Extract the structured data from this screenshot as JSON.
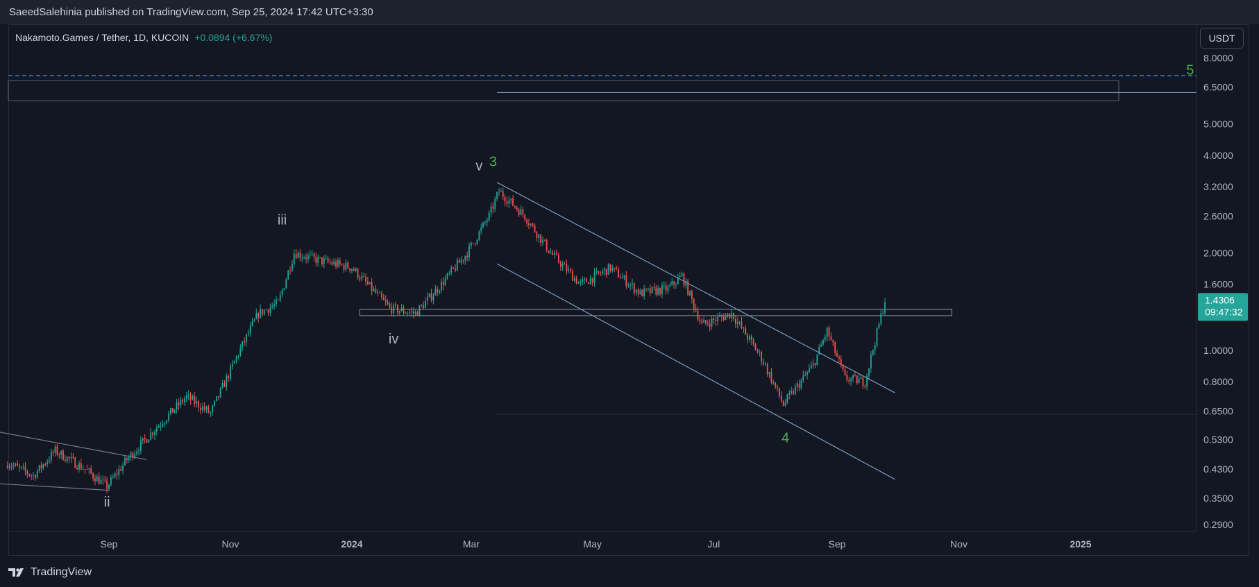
{
  "publish_bar": {
    "text": "SaeedSalehinia published on TradingView.com, Sep 25, 2024 17:42 UTC+3:30"
  },
  "legend": {
    "symbol": "Nakamoto.Games / Tether, 1D, KUCOIN",
    "change": "+0.0894 (+6.67%)"
  },
  "currency_button": "USDT",
  "last_price": {
    "value": "1.4306",
    "countdown": "09:47:32",
    "color": "#26a69a"
  },
  "footer": {
    "brand": "TradingView",
    "logo_icon": "tradingview-logo-icon"
  },
  "colors": {
    "background": "#131722",
    "up": "#26a69a",
    "down": "#ef5350",
    "trendline": "#7a9cc6",
    "wave_green": "#4caf50",
    "wave_grey": "#b2b5be",
    "target_dashed": "#2f7fd1"
  },
  "chart_data": {
    "type": "candlestick",
    "scale": "log",
    "x_axis_type": "time",
    "x_ticks": [
      "Sep",
      "Nov",
      "2024",
      "Mar",
      "May",
      "Jul",
      "Sep",
      "Nov",
      "2025"
    ],
    "y_ticks": [
      "8.0000",
      "6.5000",
      "5.0000",
      "4.0000",
      "3.2000",
      "2.6000",
      "2.0000",
      "1.6000",
      "1.0000",
      "0.8000",
      "0.6500",
      "0.5300",
      "0.4300",
      "0.3500",
      "0.2900"
    ],
    "ylim": [
      0.27,
      9.5
    ],
    "approx_close_path": [
      {
        "date": "2023-07-12",
        "close": 0.45
      },
      {
        "date": "2023-07-25",
        "close": 0.41
      },
      {
        "date": "2023-08-05",
        "close": 0.49
      },
      {
        "date": "2023-08-20",
        "close": 0.43
      },
      {
        "date": "2023-08-31",
        "close": 0.38
      },
      {
        "date": "2023-09-10",
        "close": 0.46
      },
      {
        "date": "2023-09-25",
        "close": 0.58
      },
      {
        "date": "2023-10-10",
        "close": 0.72
      },
      {
        "date": "2023-10-22",
        "close": 0.64
      },
      {
        "date": "2023-11-05",
        "close": 0.98
      },
      {
        "date": "2023-11-15",
        "close": 1.3
      },
      {
        "date": "2023-11-25",
        "close": 1.4
      },
      {
        "date": "2023-12-03",
        "close": 2.0
      },
      {
        "date": "2023-12-15",
        "close": 1.9
      },
      {
        "date": "2024-01-01",
        "close": 1.8
      },
      {
        "date": "2024-01-20",
        "close": 1.35
      },
      {
        "date": "2024-02-02",
        "close": 1.3
      },
      {
        "date": "2024-02-15",
        "close": 1.6
      },
      {
        "date": "2024-02-28",
        "close": 2.0
      },
      {
        "date": "2024-03-10",
        "close": 2.6
      },
      {
        "date": "2024-03-15",
        "close": 3.1
      },
      {
        "date": "2024-03-28",
        "close": 2.6
      },
      {
        "date": "2024-04-10",
        "close": 2.0
      },
      {
        "date": "2024-04-25",
        "close": 1.6
      },
      {
        "date": "2024-05-10",
        "close": 1.8
      },
      {
        "date": "2024-05-25",
        "close": 1.5
      },
      {
        "date": "2024-06-08",
        "close": 1.55
      },
      {
        "date": "2024-06-15",
        "close": 1.7
      },
      {
        "date": "2024-06-25",
        "close": 1.2
      },
      {
        "date": "2024-07-10",
        "close": 1.3
      },
      {
        "date": "2024-07-25",
        "close": 0.95
      },
      {
        "date": "2024-08-05",
        "close": 0.68
      },
      {
        "date": "2024-08-20",
        "close": 0.9
      },
      {
        "date": "2024-08-27",
        "close": 1.15
      },
      {
        "date": "2024-09-05",
        "close": 0.82
      },
      {
        "date": "2024-09-15",
        "close": 0.8
      },
      {
        "date": "2024-09-22",
        "close": 1.2
      },
      {
        "date": "2024-09-25",
        "close": 1.4306
      }
    ],
    "wave_labels": [
      {
        "text": "ii",
        "date": "2023-08-31",
        "price": 0.33,
        "color": "grey"
      },
      {
        "text": "iii",
        "date": "2023-11-27",
        "price": 2.45,
        "color": "grey"
      },
      {
        "text": "iv",
        "date": "2024-01-22",
        "price": 1.05,
        "color": "grey"
      },
      {
        "text": "v",
        "date": "2024-03-05",
        "price": 3.6,
        "color": "grey"
      },
      {
        "text": "3",
        "date": "2024-03-12",
        "price": 3.7,
        "color": "green"
      },
      {
        "text": "4",
        "date": "2024-08-06",
        "price": 0.52,
        "color": "green"
      },
      {
        "text": "5",
        "date": "2025-02-25",
        "price": 7.1,
        "color": "green"
      }
    ],
    "annotations": {
      "target_dashed_level": 7.05,
      "target_zone": [
        5.9,
        6.8
      ],
      "target_line_level": 6.25,
      "support_zone": [
        1.28,
        1.34
      ],
      "bottom_line_level": 0.635,
      "channel_upper": [
        {
          "date": "2024-03-14",
          "price": 3.3
        },
        {
          "date": "2024-09-30",
          "price": 0.74
        }
      ],
      "channel_lower": [
        {
          "date": "2024-03-14",
          "price": 1.85
        },
        {
          "date": "2024-09-30",
          "price": 0.4
        }
      ],
      "wedge_upper": [
        {
          "date": "2023-07-01",
          "price": 0.57
        },
        {
          "date": "2023-09-20",
          "price": 0.46
        }
      ],
      "wedge_lower": [
        {
          "date": "2023-07-01",
          "price": 0.39
        },
        {
          "date": "2023-09-01",
          "price": 0.37
        }
      ]
    }
  }
}
